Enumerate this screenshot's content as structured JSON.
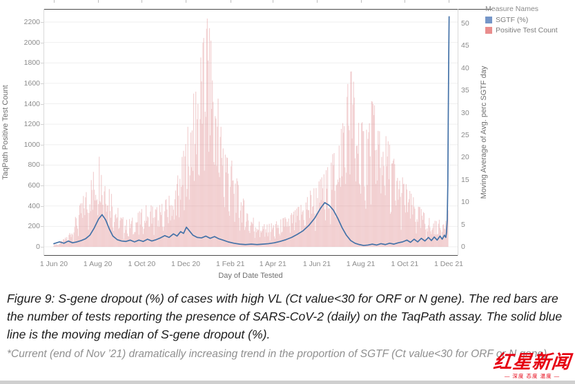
{
  "legend": {
    "title": "Measure Names",
    "items": [
      {
        "label": "SGTF (%)",
        "color": "#7596c8"
      },
      {
        "label": "Positive Test Count",
        "color": "#e98d8d"
      }
    ]
  },
  "chart_data": {
    "type": "combo-bar-line",
    "title": "",
    "x_axis": {
      "title": "Day of Date Tested",
      "tick_labels": [
        "1 Jun 20",
        "1 Aug 20",
        "1 Oct 20",
        "1 Dec 20",
        "1 Feb 21",
        "1 Apr 21",
        "1 Jun 21",
        "1 Aug 21",
        "1 Oct 21",
        "1 Dec 21"
      ],
      "tick_days": [
        0,
        61,
        122,
        183,
        245,
        304,
        365,
        426,
        487,
        548
      ]
    },
    "left_axis": {
      "title": "TaqPath Positive Test Count",
      "min": 0,
      "max": 2300,
      "step": 200,
      "ticks": [
        0,
        200,
        400,
        600,
        800,
        1000,
        1200,
        1400,
        1600,
        1800,
        2000,
        2200
      ]
    },
    "right_axis": {
      "title": "Moving Average of Avg. perc SGTF day",
      "min": 0,
      "max": 50,
      "step": 5,
      "ticks": [
        0,
        5,
        10,
        15,
        20,
        25,
        30,
        35,
        40,
        45,
        50
      ]
    },
    "series": [
      {
        "name": "Positive Test Count",
        "type": "bar",
        "axis": "left",
        "color": "#dc7a7e",
        "opacity": 0.35,
        "days_total": 548,
        "envelope_points": [
          [
            0,
            25
          ],
          [
            8,
            45
          ],
          [
            16,
            90
          ],
          [
            24,
            180
          ],
          [
            32,
            330
          ],
          [
            40,
            480
          ],
          [
            48,
            620
          ],
          [
            56,
            750
          ],
          [
            63,
            900
          ],
          [
            70,
            800
          ],
          [
            78,
            620
          ],
          [
            86,
            430
          ],
          [
            94,
            300
          ],
          [
            102,
            260
          ],
          [
            110,
            290
          ],
          [
            118,
            340
          ],
          [
            126,
            400
          ],
          [
            134,
            430
          ],
          [
            142,
            390
          ],
          [
            150,
            420
          ],
          [
            158,
            480
          ],
          [
            166,
            560
          ],
          [
            174,
            760
          ],
          [
            182,
            1000
          ],
          [
            190,
            1350
          ],
          [
            198,
            1650
          ],
          [
            206,
            1950
          ],
          [
            213,
            2280
          ],
          [
            219,
            2000
          ],
          [
            226,
            1600
          ],
          [
            234,
            1200
          ],
          [
            242,
            950
          ],
          [
            250,
            780
          ],
          [
            258,
            560
          ],
          [
            266,
            420
          ],
          [
            274,
            320
          ],
          [
            284,
            250
          ],
          [
            294,
            215
          ],
          [
            304,
            235
          ],
          [
            314,
            265
          ],
          [
            324,
            300
          ],
          [
            334,
            350
          ],
          [
            344,
            430
          ],
          [
            352,
            520
          ],
          [
            360,
            580
          ],
          [
            368,
            640
          ],
          [
            376,
            720
          ],
          [
            384,
            840
          ],
          [
            392,
            1020
          ],
          [
            400,
            1300
          ],
          [
            406,
            1550
          ],
          [
            412,
            1750
          ],
          [
            418,
            1550
          ],
          [
            424,
            1300
          ],
          [
            430,
            1180
          ],
          [
            436,
            1300
          ],
          [
            442,
            1450
          ],
          [
            448,
            1320
          ],
          [
            454,
            1200
          ],
          [
            460,
            1100
          ],
          [
            466,
            1000
          ],
          [
            472,
            880
          ],
          [
            478,
            760
          ],
          [
            484,
            680
          ],
          [
            490,
            600
          ],
          [
            496,
            520
          ],
          [
            502,
            450
          ],
          [
            508,
            390
          ],
          [
            514,
            330
          ],
          [
            520,
            290
          ],
          [
            526,
            260
          ],
          [
            532,
            250
          ],
          [
            538,
            280
          ],
          [
            543,
            380
          ],
          [
            547,
            520
          ]
        ]
      },
      {
        "name": "SGTF (%)",
        "type": "line",
        "axis": "right",
        "color": "#4472a8",
        "points": [
          [
            0,
            0.7
          ],
          [
            8,
            1.1
          ],
          [
            14,
            0.8
          ],
          [
            20,
            1.3
          ],
          [
            26,
            0.9
          ],
          [
            32,
            1.1
          ],
          [
            38,
            1.4
          ],
          [
            44,
            1.8
          ],
          [
            50,
            2.6
          ],
          [
            56,
            4.2
          ],
          [
            62,
            6.2
          ],
          [
            67,
            7.2
          ],
          [
            72,
            6.0
          ],
          [
            77,
            4.0
          ],
          [
            82,
            2.4
          ],
          [
            88,
            1.6
          ],
          [
            94,
            1.3
          ],
          [
            100,
            1.2
          ],
          [
            106,
            1.5
          ],
          [
            112,
            1.1
          ],
          [
            118,
            1.5
          ],
          [
            124,
            1.2
          ],
          [
            130,
            1.7
          ],
          [
            136,
            1.3
          ],
          [
            142,
            1.6
          ],
          [
            148,
            2.0
          ],
          [
            154,
            2.5
          ],
          [
            160,
            2.1
          ],
          [
            166,
            2.9
          ],
          [
            171,
            2.4
          ],
          [
            176,
            3.4
          ],
          [
            180,
            3.0
          ],
          [
            184,
            4.4
          ],
          [
            188,
            3.6
          ],
          [
            193,
            2.6
          ],
          [
            199,
            2.1
          ],
          [
            205,
            2.0
          ],
          [
            211,
            2.4
          ],
          [
            217,
            1.9
          ],
          [
            223,
            2.3
          ],
          [
            229,
            1.8
          ],
          [
            235,
            1.5
          ],
          [
            242,
            1.1
          ],
          [
            250,
            0.8
          ],
          [
            258,
            0.6
          ],
          [
            266,
            0.5
          ],
          [
            274,
            0.6
          ],
          [
            282,
            0.5
          ],
          [
            290,
            0.6
          ],
          [
            298,
            0.7
          ],
          [
            306,
            0.9
          ],
          [
            314,
            1.2
          ],
          [
            322,
            1.6
          ],
          [
            330,
            2.1
          ],
          [
            338,
            2.8
          ],
          [
            346,
            3.6
          ],
          [
            354,
            4.8
          ],
          [
            362,
            6.4
          ],
          [
            370,
            8.6
          ],
          [
            376,
            9.9
          ],
          [
            382,
            9.3
          ],
          [
            388,
            8.2
          ],
          [
            394,
            6.4
          ],
          [
            400,
            4.3
          ],
          [
            406,
            2.6
          ],
          [
            412,
            1.4
          ],
          [
            418,
            0.8
          ],
          [
            424,
            0.5
          ],
          [
            430,
            0.3
          ],
          [
            436,
            0.4
          ],
          [
            442,
            0.6
          ],
          [
            448,
            0.4
          ],
          [
            454,
            0.7
          ],
          [
            460,
            0.5
          ],
          [
            466,
            0.8
          ],
          [
            472,
            0.6
          ],
          [
            478,
            0.9
          ],
          [
            484,
            1.1
          ],
          [
            490,
            1.5
          ],
          [
            495,
            1.0
          ],
          [
            500,
            1.7
          ],
          [
            505,
            1.1
          ],
          [
            510,
            1.9
          ],
          [
            515,
            1.3
          ],
          [
            520,
            2.1
          ],
          [
            524,
            1.4
          ],
          [
            528,
            2.2
          ],
          [
            532,
            1.5
          ],
          [
            536,
            2.4
          ],
          [
            539,
            1.7
          ],
          [
            542,
            2.6
          ],
          [
            544,
            2.1
          ],
          [
            545,
            3.2
          ],
          [
            546,
            6.0
          ],
          [
            546.8,
            14
          ],
          [
            547.4,
            28
          ],
          [
            548,
            41
          ],
          [
            548.6,
            51.5
          ]
        ]
      }
    ],
    "grid": "horizontal-light",
    "legend_position": "top-right"
  },
  "caption": {
    "main": "Figure 9: S-gene dropout (%) of cases with high VL (Ct value<30 for ORF or N gene). The red bars are the number of tests reporting the presence of SARS-CoV-2 (daily) on the TaqPath assay. The solid blue line is the moving median of S-gene dropout (%).",
    "footnote": "*Current (end of Nov ’21) dramatically increasing trend in the proportion of SGTF (Ct value<30 for ORF or N gene)"
  },
  "watermark": {
    "name": "红星新闻",
    "tagline": "— 深度 态度 温度 —",
    "color": "#e60012"
  }
}
